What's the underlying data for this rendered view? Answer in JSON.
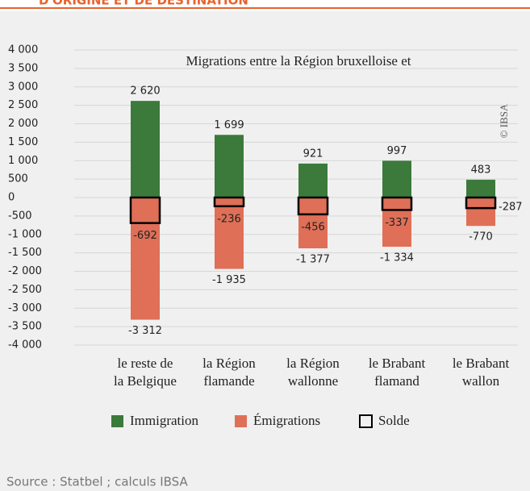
{
  "header": {
    "title": "D'ORIGINE ET DE DESTINATION"
  },
  "chart_data": {
    "type": "stacked-bar",
    "title": "Migrations entre la Région bruxelloise et",
    "credit": "© IBSA",
    "categories": [
      [
        "le reste de",
        "la Belgique"
      ],
      [
        "la Région",
        "flamande"
      ],
      [
        "la Région",
        "wallonne"
      ],
      [
        "le Brabant",
        "flamand"
      ],
      [
        "le Brabant",
        "wallon"
      ]
    ],
    "series": [
      {
        "name": "Immigration",
        "color": "#3b7a3b",
        "values": [
          2620,
          1699,
          921,
          997,
          483
        ],
        "value_labels": [
          "2 620",
          "1 699",
          "921",
          "997",
          "483"
        ]
      },
      {
        "name": "Émigrations",
        "color": "#df6f57",
        "values": [
          -3312,
          -1935,
          -1377,
          -1334,
          -770
        ],
        "value_labels": [
          "-3 312",
          "-1 935",
          "-1 377",
          "-1 334",
          "-770"
        ]
      },
      {
        "name": "Solde",
        "color": "#000000",
        "outline": true,
        "values": [
          -692,
          -236,
          -456,
          -337,
          -287
        ],
        "value_labels": [
          "-692",
          "-236",
          "-456",
          "-337",
          "-287"
        ]
      }
    ],
    "ylim": [
      -4000,
      4000
    ],
    "yticks": [
      {
        "value": -4000,
        "label": "-4 000"
      },
      {
        "value": -3500,
        "label": "-3 500"
      },
      {
        "value": -3000,
        "label": "-3 000"
      },
      {
        "value": -2500,
        "label": "-2 500"
      },
      {
        "value": -2000,
        "label": "-2 000"
      },
      {
        "value": -1500,
        "label": "-1 500"
      },
      {
        "value": -1000,
        "label": "-1 000"
      },
      -500,
      0,
      500,
      {
        "value": 1000,
        "label": "1 000"
      },
      {
        "value": 1500,
        "label": "1 500"
      },
      {
        "value": 2000,
        "label": "2 000"
      },
      {
        "value": 2500,
        "label": "2 500"
      },
      {
        "value": 3000,
        "label": "3 000"
      },
      {
        "value": 3500,
        "label": "3 500"
      },
      {
        "value": 4000,
        "label": "4 000"
      }
    ],
    "grid": true,
    "legend": "bottom",
    "source": "Source : Statbel ; calculs IBSA"
  }
}
